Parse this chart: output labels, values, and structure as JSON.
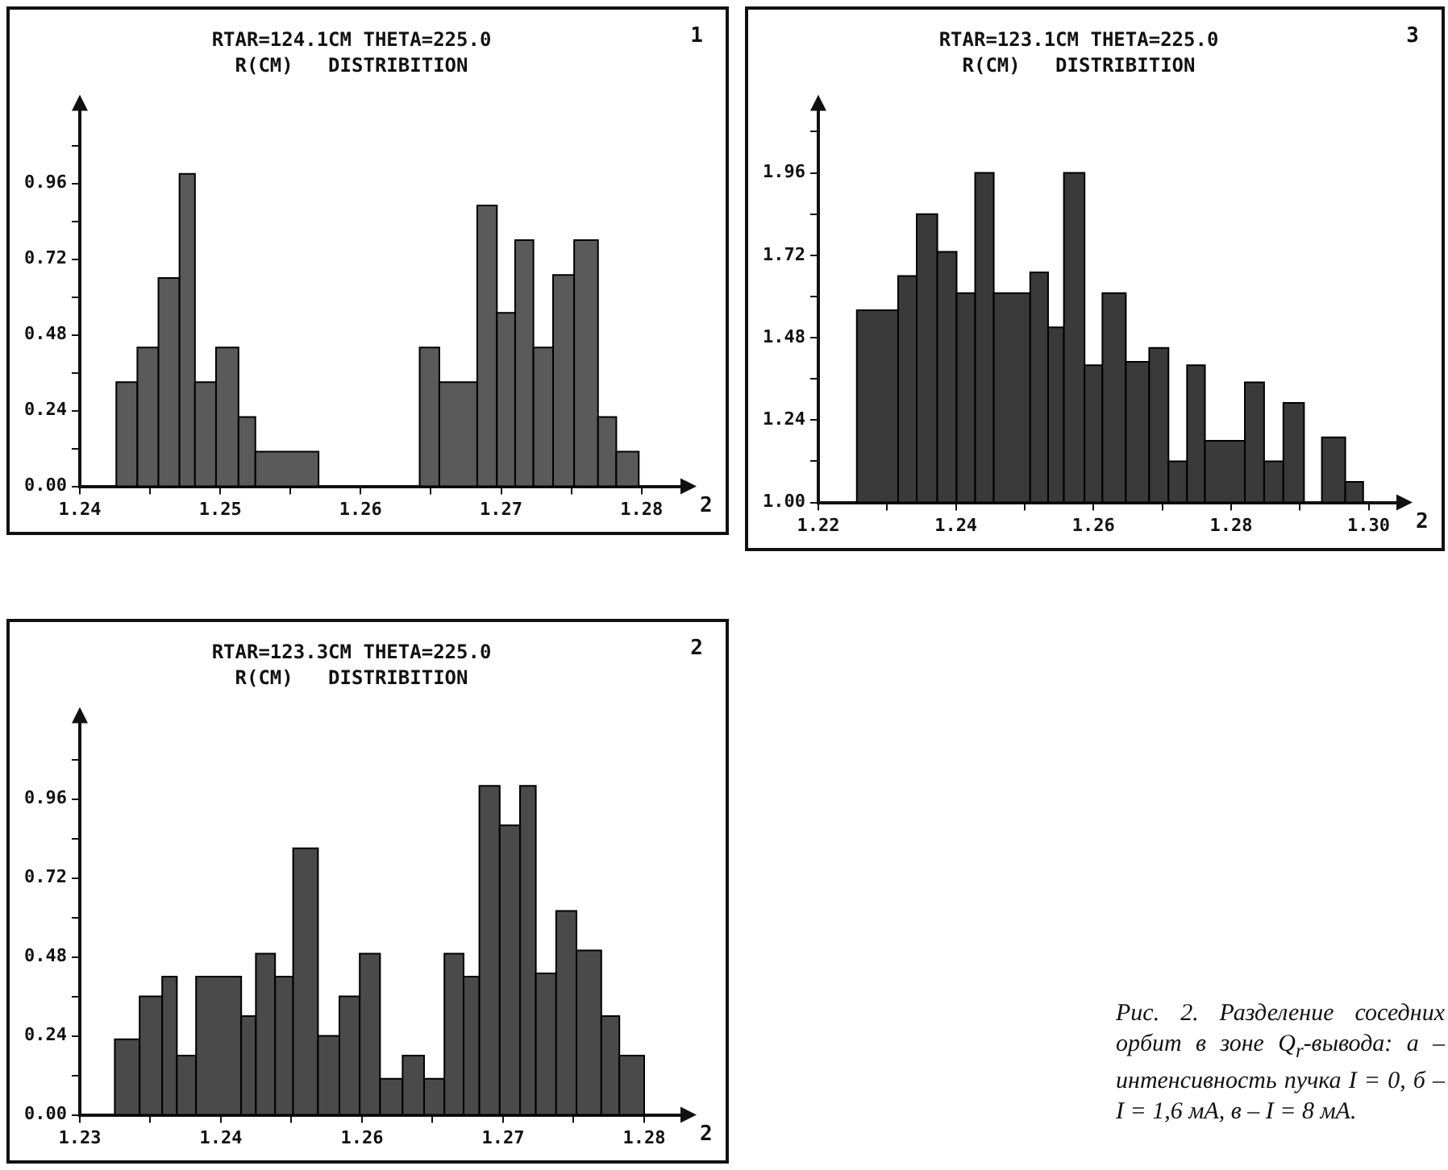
{
  "chart_data": [
    {
      "type": "histogram",
      "title": "RTAR=124.1CM THETA=225.0",
      "subtitle": "R(CM)   DISTRIBITION",
      "xlabel": "2",
      "annotations": [
        "1"
      ],
      "color": "#5a5a5a",
      "bins": [
        1.2426,
        1.2441,
        1.2456,
        1.2471,
        1.2482,
        1.2497,
        1.2513,
        1.2525,
        1.257,
        1.2642,
        1.2656,
        1.2683,
        1.2697,
        1.271,
        1.2723,
        1.2737,
        1.2752,
        1.2769,
        1.2782,
        1.2798
      ],
      "values": [
        0.33,
        0.44,
        0.66,
        0.99,
        0.33,
        0.44,
        0.22,
        0.11,
        null,
        0.44,
        0.33,
        0.89,
        0.55,
        0.78,
        0.44,
        0.67,
        0.78,
        0.22,
        0.11
      ],
      "xlim": [
        1.24,
        1.283
      ],
      "ylim": [
        0,
        1.2
      ],
      "xticks": [
        {
          "value": 1.24,
          "label": "1.24"
        },
        {
          "value": 1.245,
          "label": null
        },
        {
          "value": 1.25,
          "label": "1.25"
        },
        {
          "value": 1.255,
          "label": null
        },
        {
          "value": 1.26,
          "label": "1.26"
        },
        {
          "value": 1.265,
          "label": null
        },
        {
          "value": 1.27,
          "label": "1.27"
        },
        {
          "value": 1.275,
          "label": null
        },
        {
          "value": 1.28,
          "label": "1.28"
        }
      ],
      "yticks": [
        {
          "value": 0,
          "label": "0.00"
        },
        {
          "value": 0.12,
          "label": null
        },
        {
          "value": 0.24,
          "label": "0.24"
        },
        {
          "value": 0.36,
          "label": null
        },
        {
          "value": 0.48,
          "label": "0.48"
        },
        {
          "value": 0.6,
          "label": null
        },
        {
          "value": 0.72,
          "label": "0.72"
        },
        {
          "value": 0.84,
          "label": null
        },
        {
          "value": 0.96,
          "label": "0.96"
        },
        {
          "value": 1.08,
          "label": null
        }
      ]
    },
    {
      "type": "histogram",
      "title": "RTAR=123.1CM THETA=225.0",
      "subtitle": "R(CM)   DISTRIBITION",
      "xlabel": "2",
      "annotations": [
        "3"
      ],
      "color": "#3a3a3a",
      "bins": [
        1.2256,
        1.2316,
        1.2343,
        1.2373,
        1.2401,
        1.2428,
        1.2455,
        1.2508,
        1.2534,
        1.2557,
        1.2587,
        1.2613,
        1.2647,
        1.2681,
        1.2709,
        1.2736,
        1.2762,
        1.282,
        1.2848,
        1.2876,
        1.2906,
        1.2932,
        1.2966,
        1.2992
      ],
      "values": [
        1.56,
        1.66,
        1.84,
        1.73,
        1.61,
        1.96,
        1.61,
        1.67,
        1.51,
        1.96,
        1.4,
        1.61,
        1.41,
        1.45,
        1.12,
        1.4,
        1.18,
        1.35,
        1.12,
        1.29,
        null,
        1.19,
        1.06
      ],
      "xlim": [
        1.22,
        1.3045
      ],
      "ylim": [
        1.0,
        2.15
      ],
      "xticks": [
        {
          "value": 1.22,
          "label": "1.22"
        },
        {
          "value": 1.23,
          "label": null
        },
        {
          "value": 1.24,
          "label": "1.24"
        },
        {
          "value": 1.25,
          "label": null
        },
        {
          "value": 1.26,
          "label": "1.26"
        },
        {
          "value": 1.27,
          "label": null
        },
        {
          "value": 1.28,
          "label": "1.28"
        },
        {
          "value": 1.29,
          "label": null
        },
        {
          "value": 1.3,
          "label": "1.30"
        }
      ],
      "yticks": [
        {
          "value": 1.0,
          "label": "1.00"
        },
        {
          "value": 1.12,
          "label": null
        },
        {
          "value": 1.24,
          "label": "1.24"
        },
        {
          "value": 1.36,
          "label": null
        },
        {
          "value": 1.48,
          "label": "1.48"
        },
        {
          "value": 1.6,
          "label": null
        },
        {
          "value": 1.72,
          "label": "1.72"
        },
        {
          "value": 1.84,
          "label": null
        },
        {
          "value": 1.96,
          "label": "1.96"
        },
        {
          "value": 2.08,
          "label": null
        }
      ]
    },
    {
      "type": "histogram",
      "title": "RTAR=123.3CM THETA=225.0",
      "subtitle": "R(CM)   DISTRIBITION",
      "xlabel": "2",
      "annotations": [
        "2"
      ],
      "color": "#4a4a4a",
      "bins": [
        1.2331,
        1.2353,
        1.2373,
        1.2386,
        1.2403,
        1.2443,
        1.2456,
        1.2473,
        1.2489,
        1.2511,
        1.253,
        1.2548,
        1.2566,
        1.2586,
        1.2605,
        1.2623,
        1.264,
        1.2654,
        1.2672,
        1.269,
        1.2704,
        1.2722,
        1.274,
        1.2762,
        1.2778,
        1.28
      ],
      "values": [
        0.23,
        0.36,
        0.42,
        0.18,
        0.42,
        0.3,
        0.49,
        0.42,
        0.81,
        0.24,
        0.36,
        0.49,
        0.11,
        0.18,
        0.11,
        0.49,
        0.42,
        1.0,
        0.88,
        1.0,
        0.43,
        0.62,
        0.5,
        0.3,
        0.18
      ],
      "xlim": [
        1.23,
        1.2835
      ],
      "ylim": [
        0,
        1.2
      ],
      "xticks": [
        {
          "value": 1.23,
          "label": "1.23"
        },
        {
          "value": 1.23625,
          "label": null
        },
        {
          "value": 1.2425,
          "label": "1.24"
        },
        {
          "value": 1.24875,
          "label": null
        },
        {
          "value": 1.255,
          "label": "1.26"
        },
        {
          "value": 1.26125,
          "label": null
        },
        {
          "value": 1.2675,
          "label": "1.27"
        },
        {
          "value": 1.27375,
          "label": null
        },
        {
          "value": 1.28,
          "label": "1.28"
        }
      ],
      "yticks": [
        {
          "value": 0,
          "label": "0.00"
        },
        {
          "value": 0.12,
          "label": null
        },
        {
          "value": 0.24,
          "label": "0.24"
        },
        {
          "value": 0.36,
          "label": null
        },
        {
          "value": 0.48,
          "label": "0.48"
        },
        {
          "value": 0.6,
          "label": null
        },
        {
          "value": 0.72,
          "label": "0.72"
        },
        {
          "value": 0.84,
          "label": null
        },
        {
          "value": 0.96,
          "label": "0.96"
        },
        {
          "value": 1.08,
          "label": null
        }
      ]
    },
    {
      "type": "other",
      "annotations": [
        "Рис. 2. Разделение соседних орбит в зоне Q$_{r}$-вывода: а – интенсивность пучка I = 0, б – I = 1,6 мА, в – I = 8 мА."
      ]
    }
  ]
}
